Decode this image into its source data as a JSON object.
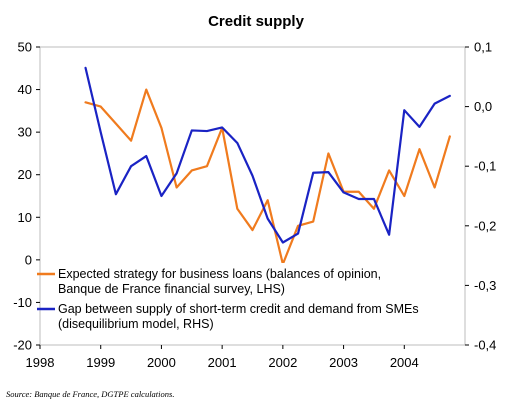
{
  "chart_data": {
    "type": "line",
    "title": "Credit supply",
    "source": "Source: Banque de France, DGTPE calculations.",
    "x_ticks": [
      "1998",
      "1999",
      "2000",
      "2001",
      "2002",
      "2003",
      "2004"
    ],
    "x_range": [
      1998.0,
      2005.0
    ],
    "y_left": {
      "range": [
        -20,
        50
      ],
      "ticks": [
        "-20",
        "-10",
        "0",
        "10",
        "20",
        "30",
        "40",
        "50"
      ],
      "tick_values": [
        -20,
        -10,
        0,
        10,
        20,
        30,
        40,
        50
      ]
    },
    "y_right": {
      "range": [
        -0.4,
        0.1
      ],
      "ticks": [
        "-0,4",
        "-0,3",
        "-0,2",
        "-0,1",
        "0,0",
        "0,1"
      ],
      "tick_values": [
        -0.4,
        -0.3,
        -0.2,
        -0.1,
        0.0,
        0.1
      ]
    },
    "grid": false,
    "legend_position": "lower-left",
    "series": [
      {
        "name": "Expected strategy for business loans (balances of opinion, Banque de France financial survey, LHS)",
        "legend_lines": [
          "Expected strategy for business loans (balances of opinion,",
          "Banque de France financial survey, LHS)"
        ],
        "axis": "left",
        "color": "#f07b1e",
        "x": [
          1998.75,
          1999.0,
          1999.25,
          1999.5,
          1999.75,
          2000.0,
          2000.25,
          2000.5,
          2000.75,
          2001.0,
          2001.25,
          2001.5,
          2001.75,
          2002.0,
          2002.25,
          2002.5,
          2002.75,
          2003.0,
          2003.25,
          2003.5,
          2003.75,
          2004.0,
          2004.25,
          2004.5,
          2004.75
        ],
        "y": [
          37,
          36,
          32,
          28,
          40,
          31,
          17,
          21,
          22,
          31,
          12,
          7,
          14,
          -1,
          8,
          9,
          25,
          16,
          16,
          12,
          21,
          15,
          26,
          17,
          29
        ]
      },
      {
        "name": "Gap between supply of short-term credit and demand from SMEs (disequilibrium model, RHS)",
        "legend_lines": [
          "Gap between supply of short-term credit and demand from SMEs",
          "(disequilibrium model, RHS)"
        ],
        "axis": "right",
        "color": "#1a23c4",
        "x": [
          1998.75,
          1999.0,
          1999.25,
          1999.5,
          1999.75,
          2000.0,
          2000.25,
          2000.5,
          2000.75,
          2001.0,
          2001.25,
          2001.5,
          2001.75,
          2002.0,
          2002.25,
          2002.5,
          2002.75,
          2003.0,
          2003.25,
          2003.5,
          2003.75,
          2004.0,
          2004.25,
          2004.5,
          2004.75
        ],
        "y": [
          0.065,
          -0.043,
          -0.147,
          -0.1,
          -0.083,
          -0.15,
          -0.112,
          -0.04,
          -0.041,
          -0.035,
          -0.061,
          -0.116,
          -0.188,
          -0.228,
          -0.213,
          -0.111,
          -0.11,
          -0.144,
          -0.155,
          -0.155,
          -0.215,
          -0.006,
          -0.034,
          0.005,
          0.018
        ]
      }
    ]
  }
}
